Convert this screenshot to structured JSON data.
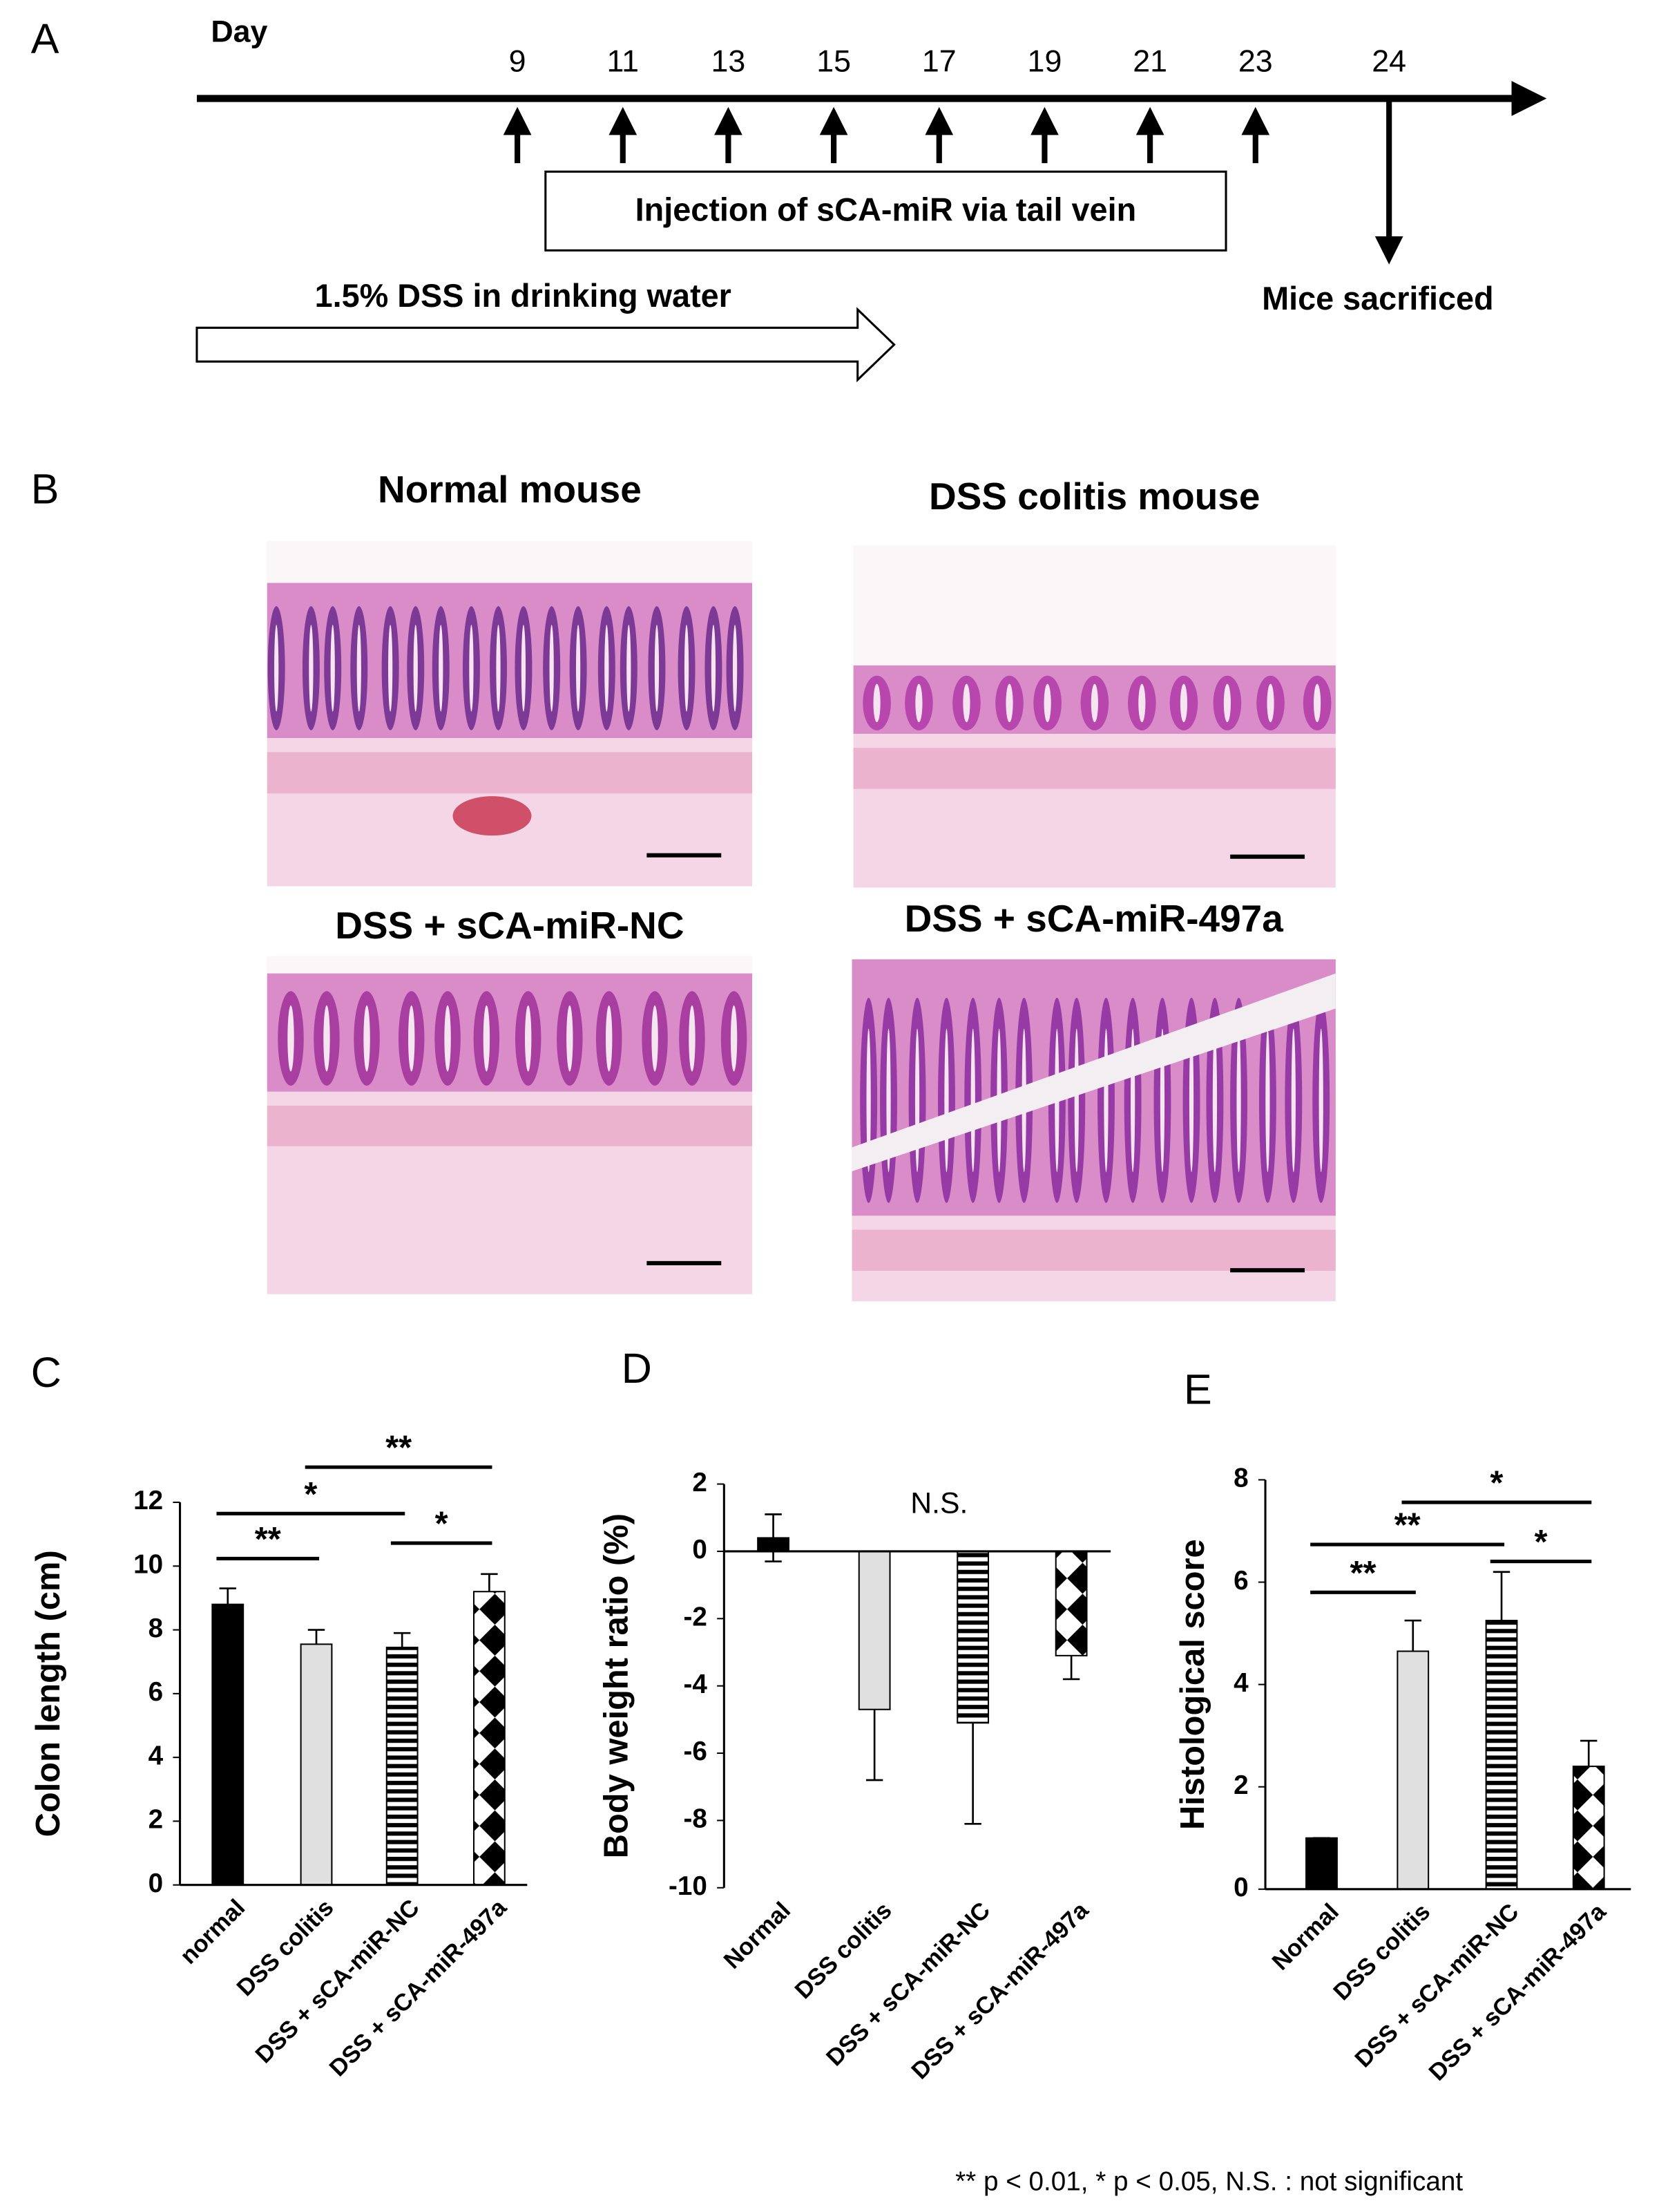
{
  "panel_a": {
    "label": "A",
    "day_label": "Day",
    "injection_days": [
      9,
      11,
      13,
      15,
      17,
      19,
      21,
      23
    ],
    "sacrifice_day": 24,
    "injection_text": "Injection of sCA-miR via tail vein",
    "dss_text": "1.5% DSS in drinking water",
    "sacrifice_text": "Mice sacrificed"
  },
  "panel_b": {
    "label": "B",
    "images": [
      "Normal mouse",
      "DSS colitis mouse",
      "DSS + sCA-miR-NC",
      "DSS + sCA-miR-497a"
    ]
  },
  "chart_data": [
    {
      "type": "bar",
      "panel_label": "C",
      "y_label": "Colon length (cm)",
      "categories": [
        "normal",
        "DSS colitis",
        "DSS + sCA-miR-NC",
        "DSS + sCA-miR-497a"
      ],
      "values": [
        8.8,
        7.55,
        7.45,
        9.2
      ],
      "errors": [
        0.5,
        0.45,
        0.45,
        0.55
      ],
      "bar_styles": [
        "#000000",
        "#e0e0e0",
        "stripes",
        "checker"
      ],
      "ylim": [
        0,
        12
      ],
      "yticks": [
        0,
        2,
        4,
        6,
        8,
        10,
        12
      ],
      "significance": [
        {
          "label": "**",
          "between": [
            0,
            1
          ]
        },
        {
          "label": "*",
          "between": [
            0,
            2
          ]
        },
        {
          "label": "**",
          "between": [
            1,
            3
          ]
        },
        {
          "label": "*",
          "between": [
            2,
            3
          ]
        }
      ]
    },
    {
      "type": "bar",
      "panel_label": "D",
      "y_label": "Body weight ratio (%)",
      "categories": [
        "Normal",
        "DSS colitis",
        "DSS + sCA-miR-NC",
        "DSS + sCA-miR-497a"
      ],
      "values": [
        0.4,
        -4.7,
        -5.1,
        -3.1
      ],
      "errors": [
        0.7,
        2.1,
        3.0,
        0.7
      ],
      "bar_styles": [
        "#000000",
        "#e0e0e0",
        "stripes",
        "checker"
      ],
      "ylim": [
        -10,
        2
      ],
      "yticks": [
        2,
        0,
        -2,
        -4,
        -6,
        -8,
        -10
      ],
      "annotation": "N.S."
    },
    {
      "type": "bar",
      "panel_label": "E",
      "y_label": "Histological score",
      "categories": [
        "Normal",
        "DSS colitis",
        "DSS + sCA-miR-NC",
        "DSS + sCA-miR-497a"
      ],
      "values": [
        1.0,
        4.65,
        5.25,
        2.4
      ],
      "errors": [
        0,
        0.6,
        0.95,
        0.5
      ],
      "bar_styles": [
        "#000000",
        "#e0e0e0",
        "stripes",
        "checker"
      ],
      "ylim": [
        0,
        8
      ],
      "yticks": [
        0,
        2,
        4,
        6,
        8
      ],
      "significance": [
        {
          "label": "**",
          "between": [
            0,
            1
          ]
        },
        {
          "label": "**",
          "between": [
            0,
            2
          ]
        },
        {
          "label": "*",
          "between": [
            1,
            3
          ]
        },
        {
          "label": "*",
          "between": [
            2,
            3
          ]
        }
      ]
    }
  ],
  "footnote": "** p < 0.01,  * p < 0.05,  N.S. : not significant"
}
